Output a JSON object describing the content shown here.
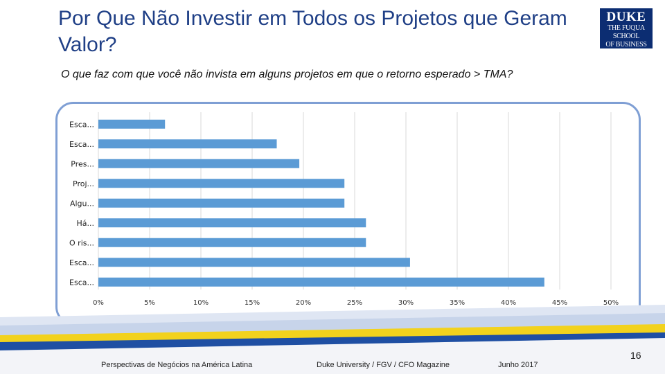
{
  "slide": {
    "title": "Por Que Não Investir em Todos os Projetos que Geram Valor?",
    "subtitle": "O que faz com que você não invista em alguns projetos em que o retorno esperado > TMA?",
    "logo_line1": "DUKE",
    "logo_line2": "THE FUQUA",
    "logo_line3": "SCHOOL",
    "logo_line4": "OF BUSINESS"
  },
  "footer": {
    "left": "Perspectivas de Negócios na América Latina",
    "middle": "Duke University / FGV / CFO Magazine",
    "right": "Junho 2017",
    "page_number": "16"
  },
  "colors": {
    "title": "#1f3f86",
    "bar": "#5b9bd5",
    "frame": "#7f9fd4",
    "band_yellow": "#f2d21d",
    "band_blue": "#1f4fa3",
    "band_light": "#c7d4ea"
  },
  "chart_data": {
    "type": "bar",
    "orientation": "horizontal",
    "categories": [
      "Esca...",
      "Esca...",
      "Pres...",
      "Proj...",
      "Algu...",
      "Há...",
      "O ris...",
      "Esca...",
      "Esca..."
    ],
    "values": [
      6.5,
      17.4,
      19.6,
      24.0,
      24.0,
      26.1,
      26.1,
      30.4,
      43.5
    ],
    "xlim": [
      0,
      50
    ],
    "xticks": [
      "0%",
      "5%",
      "10%",
      "15%",
      "20%",
      "25%",
      "30%",
      "35%",
      "40%",
      "45%",
      "50%"
    ],
    "xtick_values": [
      0,
      5,
      10,
      15,
      20,
      25,
      30,
      35,
      40,
      45,
      50
    ],
    "grid": true,
    "legend": "none"
  }
}
